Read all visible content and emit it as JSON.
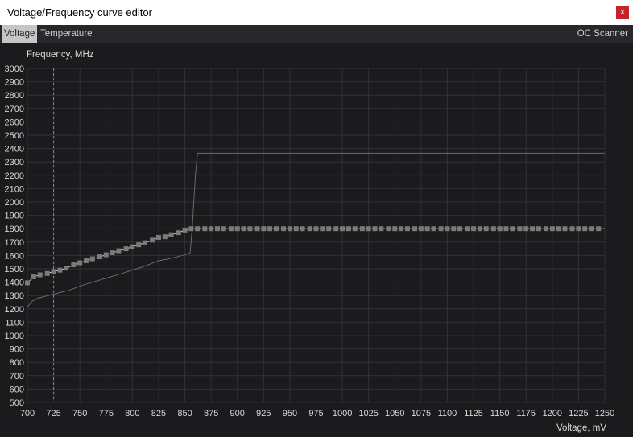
{
  "window": {
    "title": "Voltage/Frequency curve editor",
    "close_label": "x"
  },
  "tabs": [
    {
      "label": "Voltage",
      "active": true
    },
    {
      "label": "Temperature",
      "active": false
    }
  ],
  "oc_scanner_label": "OC Scanner",
  "colors": {
    "background": "#1b1b1e",
    "grid": "#313136",
    "curve": "#d0d0d0",
    "point": "#7a7a7a",
    "reference": "#6a6a6a",
    "close": "#c4242b"
  },
  "chart_data": {
    "type": "line",
    "ylabel": "Frequency, MHz",
    "xlabel": "Voltage, mV",
    "xlim": [
      700,
      1250
    ],
    "ylim": [
      500,
      3000
    ],
    "x_ticks": [
      700,
      725,
      750,
      775,
      800,
      825,
      850,
      875,
      900,
      925,
      950,
      975,
      1000,
      1025,
      1050,
      1075,
      1100,
      1125,
      1150,
      1175,
      1200,
      1225,
      1250
    ],
    "y_ticks": [
      500,
      600,
      700,
      800,
      900,
      1000,
      1100,
      1200,
      1300,
      1400,
      1500,
      1600,
      1700,
      1800,
      1900,
      2000,
      2100,
      2200,
      2300,
      2400,
      2500,
      2600,
      2700,
      2800,
      2900,
      3000
    ],
    "grid": true,
    "marker_voltage": 725,
    "series": [
      {
        "role": "curve-points",
        "x": [
          700,
          706,
          712,
          719,
          725,
          731,
          737,
          744,
          750,
          756,
          762,
          769,
          775,
          781,
          787,
          794,
          800,
          806,
          812,
          819,
          825,
          831,
          837,
          844,
          850,
          856,
          862,
          869,
          875,
          881,
          887,
          894,
          900,
          906,
          912,
          919,
          925,
          931,
          937,
          944,
          950,
          956,
          962,
          969,
          975,
          981,
          987,
          994,
          1000,
          1006,
          1012,
          1019,
          1025,
          1031,
          1037,
          1044,
          1050,
          1056,
          1062,
          1069,
          1075,
          1081,
          1087,
          1094,
          1100,
          1106,
          1112,
          1119,
          1125,
          1131,
          1137,
          1144,
          1150,
          1156,
          1162,
          1169,
          1175,
          1181,
          1187,
          1194,
          1200,
          1206,
          1212,
          1219,
          1225,
          1231,
          1237,
          1244
        ],
        "y": [
          1395,
          1440,
          1455,
          1465,
          1480,
          1490,
          1505,
          1530,
          1545,
          1560,
          1575,
          1590,
          1605,
          1620,
          1635,
          1650,
          1665,
          1680,
          1695,
          1715,
          1735,
          1740,
          1755,
          1770,
          1790,
          1800,
          1800,
          1800,
          1800,
          1800,
          1800,
          1800,
          1800,
          1800,
          1800,
          1800,
          1800,
          1800,
          1800,
          1800,
          1800,
          1800,
          1800,
          1800,
          1800,
          1800,
          1800,
          1800,
          1800,
          1800,
          1800,
          1800,
          1800,
          1800,
          1800,
          1800,
          1800,
          1800,
          1800,
          1800,
          1800,
          1800,
          1800,
          1800,
          1800,
          1800,
          1800,
          1800,
          1800,
          1800,
          1800,
          1800,
          1800,
          1800,
          1800,
          1800,
          1800,
          1800,
          1800,
          1800,
          1800,
          1800,
          1800,
          1800,
          1800,
          1800,
          1800,
          1800
        ]
      },
      {
        "role": "reference-curve",
        "x": [
          700,
          705,
          710,
          725,
          740,
          750,
          760,
          775,
          790,
          800,
          810,
          820,
          825,
          835,
          850,
          855,
          857,
          860,
          862,
          1250
        ],
        "y": [
          1215,
          1260,
          1280,
          1310,
          1340,
          1370,
          1395,
          1430,
          1465,
          1490,
          1515,
          1545,
          1560,
          1575,
          1605,
          1620,
          1800,
          2200,
          2365,
          2365
        ]
      }
    ]
  }
}
